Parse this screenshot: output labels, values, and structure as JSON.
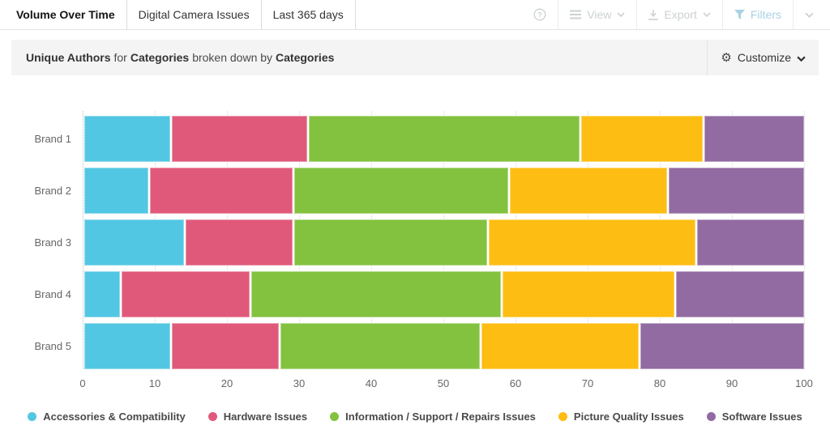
{
  "toolbar": {
    "tabs": [
      {
        "label": "Volume Over Time",
        "active": true
      },
      {
        "label": "Digital Camera Issues",
        "active": false
      },
      {
        "label": "Last 365 days",
        "active": false
      }
    ],
    "view_label": "View",
    "export_label": "Export",
    "filters_label": "Filters",
    "muted_color": "#ccd1d3",
    "filters_color": "#a9d2e2"
  },
  "subheader": {
    "metric": "Unique Authors",
    "connector1": "for",
    "dimension": "Categories",
    "connector2": "broken down by",
    "breakdown": "Categories",
    "customize_label": "Customize",
    "background": "#f4f4f4"
  },
  "chart_data": {
    "type": "bar",
    "stacked": true,
    "orientation": "horizontal",
    "units": "percent",
    "categories": [
      "Brand 1",
      "Brand 2",
      "Brand 3",
      "Brand 4",
      "Brand 5"
    ],
    "series": [
      {
        "name": "Accessories & Compatibility",
        "color": "#52c7e3",
        "values": [
          12,
          9,
          14,
          5,
          12
        ]
      },
      {
        "name": "Hardware Issues",
        "color": "#e0597b",
        "values": [
          19,
          20,
          15,
          18,
          15
        ]
      },
      {
        "name": "Information / Support / Repairs Issues",
        "color": "#83c23f",
        "values": [
          38,
          30,
          27,
          35,
          28
        ]
      },
      {
        "name": "Picture Quality Issues",
        "color": "#fdbd13",
        "values": [
          17,
          22,
          29,
          24,
          22
        ]
      },
      {
        "name": "Software Issues",
        "color": "#916ba2",
        "values": [
          14,
          19,
          15,
          18,
          23
        ]
      }
    ],
    "xlim": [
      0,
      100
    ],
    "xticks": [
      0,
      10,
      20,
      30,
      40,
      50,
      60,
      70,
      80,
      90,
      100
    ],
    "grid": "dotted-vertical",
    "legend_position": "bottom"
  }
}
